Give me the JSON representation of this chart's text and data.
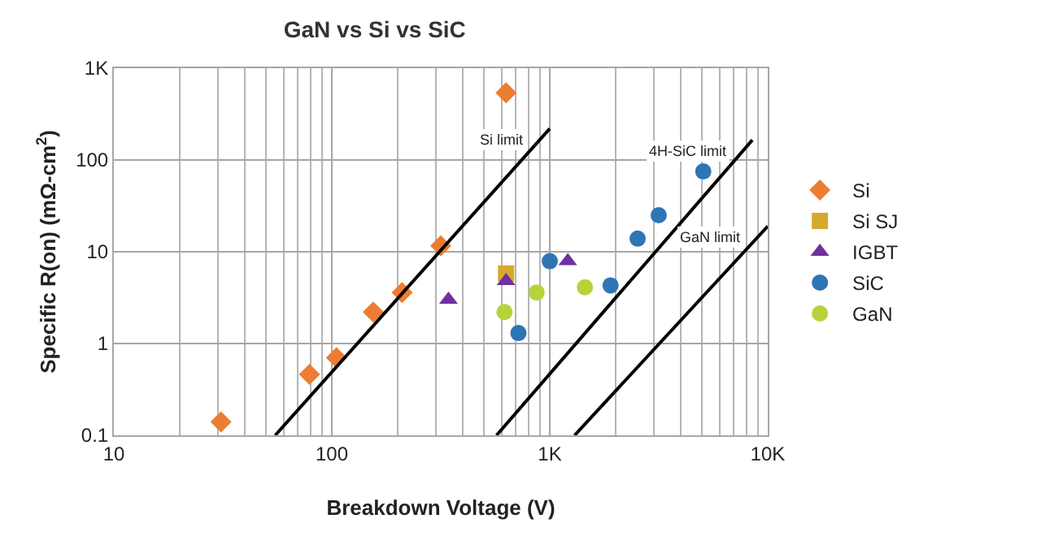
{
  "chart_data": {
    "type": "scatter",
    "title": "GaN vs Si vs SiC",
    "xlabel": "Breakdown Voltage (V)",
    "ylabel": "Specific R(on) (mΩ-cm$^{2}$)",
    "log": "xy",
    "grid": true,
    "legend": "right",
    "xlim": [
      10,
      10000
    ],
    "xticks": [
      10,
      100,
      {
        "value": 1000,
        "label": "1K"
      },
      {
        "value": 10000,
        "label": "10K"
      }
    ],
    "ylim": [
      0.1,
      1000
    ],
    "yticks": [
      0.1,
      1,
      10,
      100,
      {
        "value": 1000,
        "label": "1K"
      }
    ],
    "series": [
      {
        "name": "Si",
        "marker": "diamond",
        "color": "#ed7d31",
        "x": [
          31,
          79,
          105,
          155,
          210,
          316,
          630
        ],
        "values": [
          0.14,
          0.46,
          0.7,
          2.2,
          3.6,
          11.6,
          540
        ]
      },
      {
        "name": "Si SJ",
        "marker": "square",
        "color": "#d6a92c",
        "x": [
          630
        ],
        "values": [
          5.8
        ]
      },
      {
        "name": "IGBT",
        "marker": "triangle",
        "color": "#7030a0",
        "x": [
          343,
          630,
          1210
        ],
        "values": [
          3.0,
          4.8,
          7.9
        ]
      },
      {
        "name": "SiC",
        "marker": "circle",
        "color": "#2e75b6",
        "x": [
          718,
          1000,
          1900,
          2530,
          3160,
          5060
        ],
        "values": [
          1.3,
          7.9,
          4.3,
          13.9,
          25,
          75
        ]
      },
      {
        "name": "GaN",
        "marker": "circle",
        "color": "#b7d33a",
        "x": [
          620,
          870,
          1450
        ],
        "values": [
          2.2,
          3.6,
          4.1
        ]
      },
      {
        "name": "Si limit",
        "type": "line",
        "color": "#000000",
        "x": [
          55,
          1000
        ],
        "values": [
          0.1,
          220
        ]
      },
      {
        "name": "4H-SiC limit",
        "type": "line",
        "color": "#000000",
        "x": [
          570,
          8500
        ],
        "values": [
          0.1,
          165
        ]
      },
      {
        "name": "GaN limit",
        "type": "line",
        "color": "#000000",
        "x": [
          1300,
          10000
        ],
        "values": [
          0.1,
          19
        ]
      }
    ]
  }
}
